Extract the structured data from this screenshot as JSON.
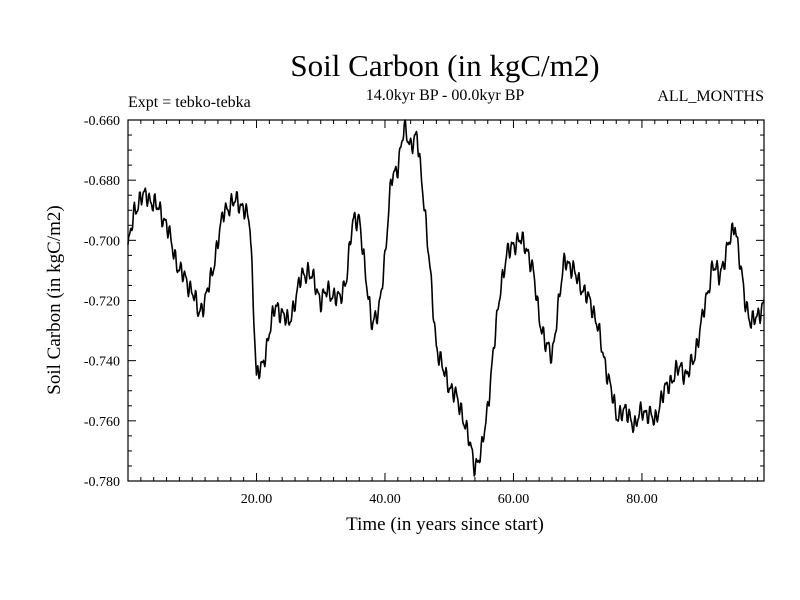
{
  "chart_data": {
    "type": "line",
    "title": "Soil Carbon (in kgC/m2)",
    "subtitle": "14.0kyr BP - 00.0kyr BP",
    "expt_label": "Expt = tebko-tebka",
    "period_label": "ALL_MONTHS",
    "xlabel": "Time (in years since start)",
    "ylabel": "Soil Carbon (in kgC/m2)",
    "xlim": [
      0,
      99
    ],
    "ylim": [
      -0.78,
      -0.66
    ],
    "x_ticks": [
      20,
      40,
      60,
      80
    ],
    "x_tick_labels": [
      "20.00",
      "40.00",
      "60.00",
      "80.00"
    ],
    "y_ticks": [
      -0.66,
      -0.68,
      -0.7,
      -0.72,
      -0.74,
      -0.76,
      -0.78
    ],
    "y_tick_labels": [
      "-0.660",
      "-0.680",
      "-0.700",
      "-0.720",
      "-0.740",
      "-0.760",
      "-0.780"
    ],
    "series": [
      {
        "name": "Soil Carbon",
        "anchors": [
          [
            0,
            -0.703
          ],
          [
            1,
            -0.69
          ],
          [
            2,
            -0.686
          ],
          [
            3,
            -0.685
          ],
          [
            4,
            -0.688
          ],
          [
            5,
            -0.69
          ],
          [
            6,
            -0.695
          ],
          [
            7,
            -0.703
          ],
          [
            8,
            -0.71
          ],
          [
            9,
            -0.713
          ],
          [
            10,
            -0.717
          ],
          [
            11,
            -0.724
          ],
          [
            12,
            -0.72
          ],
          [
            13,
            -0.712
          ],
          [
            14,
            -0.7
          ],
          [
            15,
            -0.69
          ],
          [
            16,
            -0.688
          ],
          [
            17,
            -0.687
          ],
          [
            18,
            -0.689
          ],
          [
            19,
            -0.695
          ],
          [
            19.5,
            -0.72
          ],
          [
            20,
            -0.745
          ],
          [
            21,
            -0.742
          ],
          [
            22,
            -0.73
          ],
          [
            23,
            -0.722
          ],
          [
            24,
            -0.724
          ],
          [
            25,
            -0.728
          ],
          [
            26,
            -0.72
          ],
          [
            27,
            -0.712
          ],
          [
            28,
            -0.71
          ],
          [
            29,
            -0.714
          ],
          [
            30,
            -0.72
          ],
          [
            31,
            -0.717
          ],
          [
            32,
            -0.718
          ],
          [
            33,
            -0.72
          ],
          [
            34,
            -0.712
          ],
          [
            35,
            -0.694
          ],
          [
            36,
            -0.692
          ],
          [
            37,
            -0.713
          ],
          [
            38,
            -0.727
          ],
          [
            39,
            -0.725
          ],
          [
            40,
            -0.705
          ],
          [
            41,
            -0.68
          ],
          [
            42,
            -0.675
          ],
          [
            43,
            -0.663
          ],
          [
            44,
            -0.668
          ],
          [
            45,
            -0.666
          ],
          [
            46,
            -0.685
          ],
          [
            47,
            -0.71
          ],
          [
            48,
            -0.735
          ],
          [
            49,
            -0.743
          ],
          [
            50,
            -0.748
          ],
          [
            51,
            -0.752
          ],
          [
            52,
            -0.757
          ],
          [
            53,
            -0.766
          ],
          [
            54,
            -0.775
          ],
          [
            55,
            -0.771
          ],
          [
            56,
            -0.755
          ],
          [
            57,
            -0.735
          ],
          [
            58,
            -0.715
          ],
          [
            59,
            -0.705
          ],
          [
            60,
            -0.701
          ],
          [
            61,
            -0.7
          ],
          [
            62,
            -0.702
          ],
          [
            63,
            -0.71
          ],
          [
            64,
            -0.725
          ],
          [
            65,
            -0.735
          ],
          [
            66,
            -0.738
          ],
          [
            67,
            -0.722
          ],
          [
            68,
            -0.705
          ],
          [
            69,
            -0.71
          ],
          [
            70,
            -0.712
          ],
          [
            71,
            -0.718
          ],
          [
            72,
            -0.72
          ],
          [
            73,
            -0.728
          ],
          [
            74,
            -0.738
          ],
          [
            75,
            -0.748
          ],
          [
            76,
            -0.758
          ],
          [
            77,
            -0.757
          ],
          [
            78,
            -0.758
          ],
          [
            79,
            -0.762
          ],
          [
            80,
            -0.756
          ],
          [
            81,
            -0.758
          ],
          [
            82,
            -0.76
          ],
          [
            83,
            -0.753
          ],
          [
            84,
            -0.748
          ],
          [
            85,
            -0.745
          ],
          [
            86,
            -0.742
          ],
          [
            87,
            -0.745
          ],
          [
            88,
            -0.74
          ],
          [
            89,
            -0.73
          ],
          [
            90,
            -0.72
          ],
          [
            91,
            -0.708
          ],
          [
            92,
            -0.712
          ],
          [
            93,
            -0.705
          ],
          [
            94,
            -0.698
          ],
          [
            94.5,
            -0.694
          ],
          [
            95,
            -0.703
          ],
          [
            96,
            -0.72
          ],
          [
            97,
            -0.727
          ],
          [
            98,
            -0.726
          ],
          [
            99,
            -0.72
          ]
        ],
        "wiggle_amplitude": 0.004,
        "samples_per_year": 10
      }
    ]
  }
}
